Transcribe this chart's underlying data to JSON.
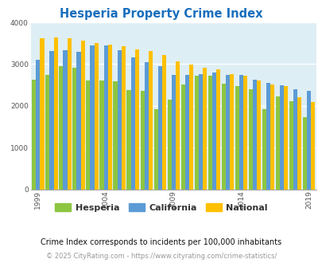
{
  "title": "Hesperia Property Crime Index",
  "title_color": "#1a6fbd",
  "subtitle": "Crime Index corresponds to incidents per 100,000 inhabitants",
  "footer": "© 2025 CityRating.com - https://www.cityrating.com/crime-statistics/",
  "years": [
    1999,
    2000,
    2001,
    2002,
    2003,
    2004,
    2005,
    2006,
    2007,
    2008,
    2009,
    2010,
    2011,
    2012,
    2013,
    2014,
    2015,
    2016,
    2017,
    2018,
    2019
  ],
  "hesperia": [
    2620,
    2750,
    2950,
    2920,
    2600,
    2600,
    2580,
    2380,
    2360,
    1920,
    2150,
    2510,
    2730,
    2730,
    2530,
    2480,
    2400,
    1920,
    2230,
    2110,
    1720
  ],
  "california": [
    3100,
    3310,
    3340,
    3290,
    3450,
    3440,
    3330,
    3160,
    3050,
    2960,
    2740,
    2750,
    2760,
    2800,
    2750,
    2740,
    2620,
    2550,
    2500,
    2400,
    2360
  ],
  "national": [
    3620,
    3640,
    3620,
    3570,
    3510,
    3470,
    3430,
    3350,
    3310,
    3220,
    3060,
    2980,
    2920,
    2880,
    2760,
    2720,
    2600,
    2510,
    2480,
    2210,
    2100
  ],
  "hesperia_color": "#8dc641",
  "california_color": "#5b9bd5",
  "national_color": "#ffc000",
  "bg_color": "#deeef5",
  "ylim": [
    0,
    4000
  ],
  "yticks": [
    0,
    1000,
    2000,
    3000,
    4000
  ],
  "xtick_years": [
    1999,
    2004,
    2009,
    2014,
    2019
  ]
}
